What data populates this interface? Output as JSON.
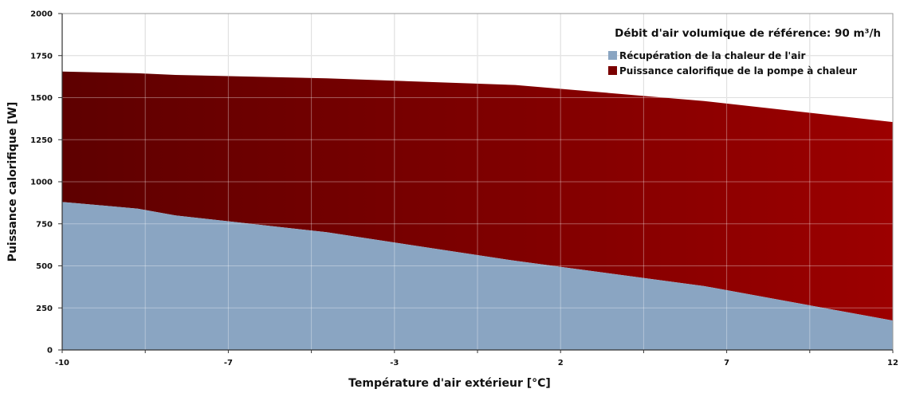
{
  "chart_data": {
    "type": "area",
    "stacked": true,
    "xlabel": "Température d'air extérieur [°C]",
    "ylabel": "Puissance calorifique [W]",
    "xlim": [
      -10,
      12
    ],
    "ylim": [
      0,
      2000
    ],
    "x_ticks": [
      -10,
      -7,
      -3,
      2,
      7,
      12
    ],
    "y_ticks": [
      0,
      250,
      500,
      750,
      1000,
      1250,
      1500,
      1750,
      2000
    ],
    "grid": true,
    "legend_title": "Débit d'air volumique de référence: 90 m³/h",
    "legend_position": "top-right",
    "series": [
      {
        "name": "Récupération de la chaleur de l'air",
        "color": "#8aa5c2",
        "x": [
          -10,
          -8,
          -7,
          -5,
          -3,
          2,
          7,
          12
        ],
        "values": [
          880,
          840,
          800,
          750,
          700,
          530,
          380,
          175
        ]
      },
      {
        "name": "Puissance calorifique de la pompe à chaleur",
        "color": "#7a0000",
        "x": [
          -10,
          -8,
          -7,
          -5,
          -3,
          2,
          7,
          12
        ],
        "totals": [
          1655,
          1645,
          1635,
          1625,
          1615,
          1575,
          1480,
          1355
        ],
        "values": [
          775,
          805,
          835,
          875,
          915,
          1045,
          1100,
          1180
        ]
      }
    ]
  }
}
